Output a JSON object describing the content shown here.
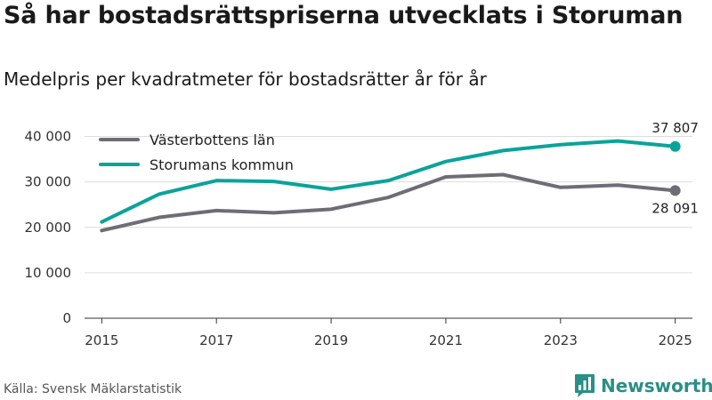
{
  "title": "Så har bostadsrättspriserna utvecklats i Storuman",
  "subtitle": "Medelpris per kvadratmeter för bostadsrätter år för år",
  "source": "Källa: Svensk Mäklarstatistik",
  "brand": "Newsworthy",
  "colors": {
    "brand": "#2a8f86"
  },
  "chart_data": {
    "type": "line",
    "x": [
      2015,
      2016,
      2017,
      2018,
      2019,
      2020,
      2021,
      2022,
      2023,
      2024,
      2025
    ],
    "x_ticks": [
      2015,
      2017,
      2019,
      2021,
      2023,
      2025
    ],
    "x_tick_labels": [
      "2015",
      "2017",
      "2019",
      "2021",
      "2023",
      "2025"
    ],
    "y_ticks": [
      0,
      10000,
      20000,
      30000,
      40000
    ],
    "y_tick_labels": [
      "0",
      "10 000",
      "20 000",
      "30 000",
      "40 000"
    ],
    "ylim": [
      0,
      45000
    ],
    "xlim": [
      2014.7,
      2025.3
    ],
    "grid": true,
    "legend_position": "top-left",
    "series": [
      {
        "name": "Västerbottens län",
        "color": "#6e6d76",
        "values": [
          19300,
          22200,
          23700,
          23200,
          24000,
          26600,
          31100,
          31600,
          28800,
          29300,
          28091
        ],
        "end_label": "28 091",
        "end_label_position": "below"
      },
      {
        "name": "Storumans kommun",
        "color": "#0aa399",
        "values": [
          21200,
          27300,
          30300,
          30100,
          28400,
          30300,
          34500,
          36900,
          38200,
          39000,
          37807
        ],
        "end_label": "37 807",
        "end_label_position": "above"
      }
    ]
  }
}
